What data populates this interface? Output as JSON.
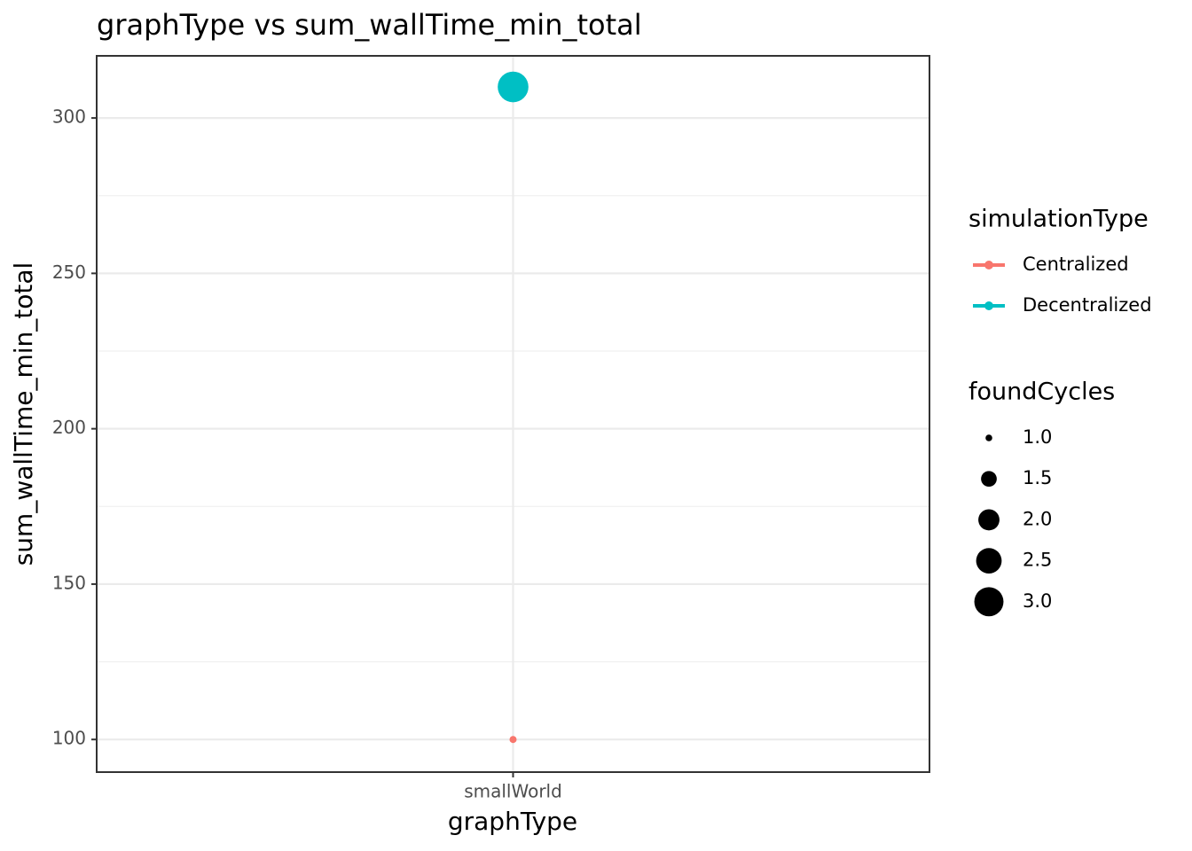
{
  "chart_data": {
    "type": "scatter",
    "title": "graphType  vs  sum_wallTime_min_total",
    "x_label": "graphType",
    "y_label": "sum_wallTime_min_total",
    "categories": [
      "smallWorld"
    ],
    "series": [
      {
        "name": "Centralized",
        "color": "#F8766D",
        "values": [
          100
        ],
        "sizes": [
          1
        ]
      },
      {
        "name": "Decentralized",
        "color": "#00BFC4",
        "values": [
          310
        ],
        "sizes": [
          3
        ]
      }
    ],
    "ylim": [
      89.5,
      320
    ],
    "yticks": [
      100,
      150,
      200,
      250,
      300
    ],
    "yminor": [
      125,
      175,
      225,
      275
    ],
    "grid": true,
    "color_legend_title": "simulationType",
    "size_legend": {
      "title": "foundCycles",
      "breaks": [
        {
          "value": 1,
          "label": "1.0"
        },
        {
          "value": 1.5,
          "label": "1.5"
        },
        {
          "value": 2,
          "label": "2.0"
        },
        {
          "value": 2.5,
          "label": "2.5"
        },
        {
          "value": 3,
          "label": "3.0"
        }
      ]
    }
  }
}
